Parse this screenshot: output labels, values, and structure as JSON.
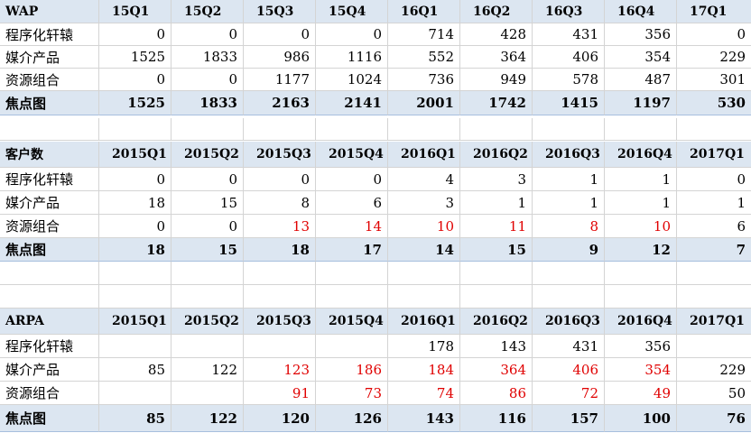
{
  "sections": [
    {
      "header": [
        "WAP",
        "15Q1",
        "15Q2",
        "15Q3",
        "15Q4",
        "16Q1",
        "16Q2",
        "16Q3",
        "16Q4",
        "17Q1"
      ],
      "rows": [
        {
          "label": "程序化轩辕",
          "values": [
            "0",
            "0",
            "0",
            "0",
            "714",
            "428",
            "431",
            "356",
            "0"
          ],
          "red": []
        },
        {
          "label": "媒介产品",
          "values": [
            "1525",
            "1833",
            "986",
            "1116",
            "552",
            "364",
            "406",
            "354",
            "229"
          ],
          "red": []
        },
        {
          "label": "资源组合",
          "values": [
            "0",
            "0",
            "1177",
            "1024",
            "736",
            "949",
            "578",
            "487",
            "301"
          ],
          "red": []
        }
      ],
      "total": {
        "label": "焦点图",
        "values": [
          "1525",
          "1833",
          "2163",
          "2141",
          "2001",
          "1742",
          "1415",
          "1197",
          "530"
        ]
      }
    },
    {
      "header": [
        "客户数",
        "2015Q1",
        "2015Q2",
        "2015Q3",
        "2015Q4",
        "2016Q1",
        "2016Q2",
        "2016Q3",
        "2016Q4",
        "2017Q1"
      ],
      "rows": [
        {
          "label": "程序化轩辕",
          "values": [
            "0",
            "0",
            "0",
            "0",
            "4",
            "3",
            "1",
            "1",
            "0"
          ],
          "red": []
        },
        {
          "label": "媒介产品",
          "values": [
            "18",
            "15",
            "8",
            "6",
            "3",
            "1",
            "1",
            "1",
            "1"
          ],
          "red": []
        },
        {
          "label": "资源组合",
          "values": [
            "0",
            "0",
            "13",
            "14",
            "10",
            "11",
            "8",
            "10",
            "6"
          ],
          "red": [
            2,
            3,
            4,
            5,
            6,
            7
          ]
        }
      ],
      "total": {
        "label": "焦点图",
        "values": [
          "18",
          "15",
          "18",
          "17",
          "14",
          "15",
          "9",
          "12",
          "7"
        ]
      }
    },
    {
      "header": [
        "ARPA",
        "2015Q1",
        "2015Q2",
        "2015Q3",
        "2015Q4",
        "2016Q1",
        "2016Q2",
        "2016Q3",
        "2016Q4",
        "2017Q1"
      ],
      "rows": [
        {
          "label": "程序化轩辕",
          "values": [
            "",
            "",
            "",
            "",
            "178",
            "143",
            "431",
            "356",
            ""
          ],
          "red": []
        },
        {
          "label": "媒介产品",
          "values": [
            "85",
            "122",
            "123",
            "186",
            "184",
            "364",
            "406",
            "354",
            "229"
          ],
          "red": [
            2,
            3,
            4,
            5,
            6,
            7
          ]
        },
        {
          "label": "资源组合",
          "values": [
            "",
            "",
            "91",
            "73",
            "74",
            "86",
            "72",
            "49",
            "50"
          ],
          "red": [
            2,
            3,
            4,
            5,
            6,
            7
          ]
        }
      ],
      "total": {
        "label": "焦点图",
        "values": [
          "85",
          "122",
          "120",
          "126",
          "143",
          "116",
          "157",
          "100",
          "76"
        ]
      }
    }
  ]
}
